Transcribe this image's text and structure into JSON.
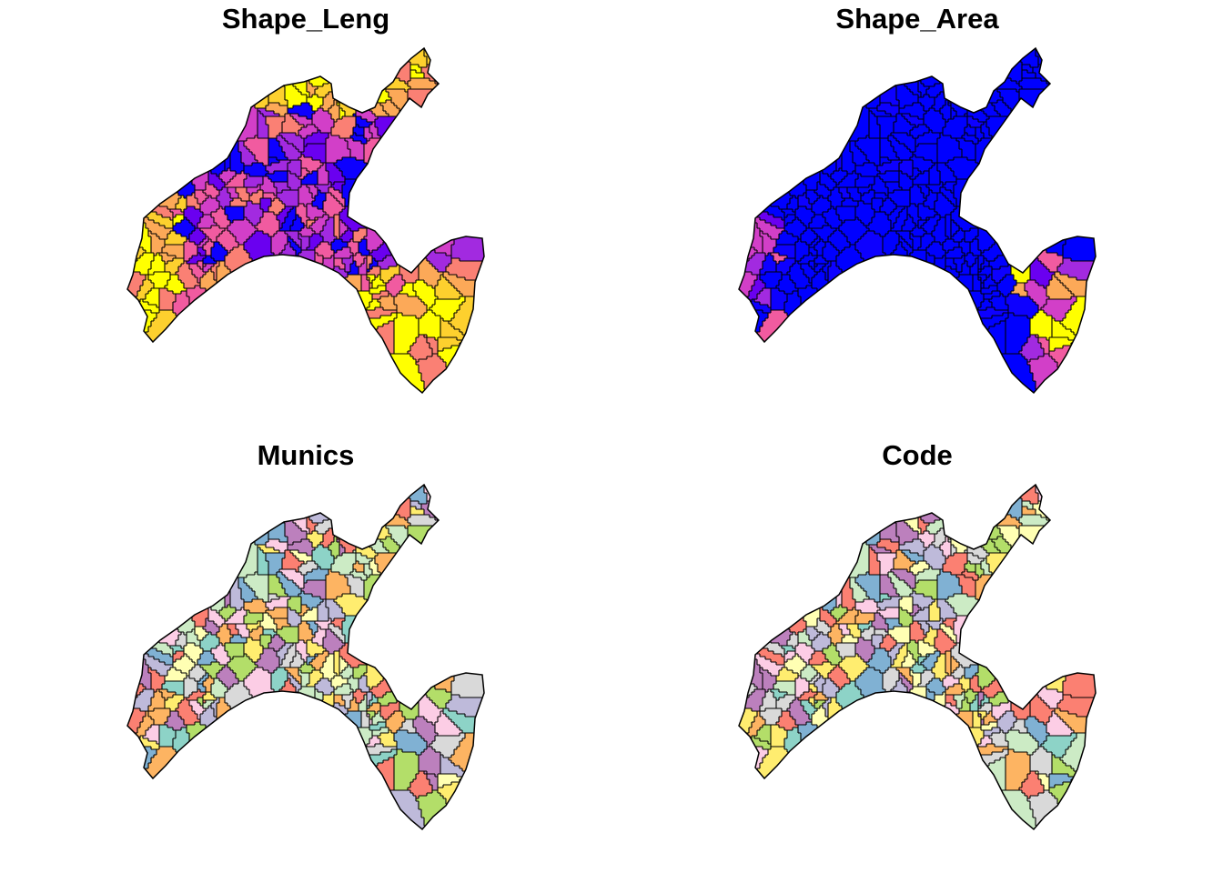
{
  "figure": {
    "panels": [
      {
        "title": "Shape_Leng",
        "palette": [
          "#0D00FF",
          "#6A00F0",
          "#A22AE0",
          "#D23FC8",
          "#F15BA0",
          "#FA8074",
          "#FCA958",
          "#FDD02E",
          "#FFFF00"
        ]
      },
      {
        "title": "Shape_Area",
        "palette": [
          "#0000FF",
          "#0000FF",
          "#0000FF",
          "#0000FF",
          "#0000FF",
          "#0D00FF",
          "#6A00F0",
          "#A22AE0",
          "#D23FC8",
          "#F15BA0",
          "#FCA958",
          "#FFFF00"
        ]
      },
      {
        "title": "Munics",
        "palette": [
          "#8DD3C7",
          "#FFFFB3",
          "#BEBADA",
          "#FB8072",
          "#80B1D3",
          "#FDB462",
          "#B3DE69",
          "#FCCDE5",
          "#D9D9D9",
          "#BC80BD",
          "#CCEBC5",
          "#FFED6F"
        ]
      },
      {
        "title": "Code",
        "palette": [
          "#8DD3C7",
          "#FFFFB3",
          "#BEBADA",
          "#FB8072",
          "#80B1D3",
          "#FDB462",
          "#B3DE69",
          "#FCCDE5",
          "#D9D9D9",
          "#BC80BD",
          "#CCEBC5",
          "#FFED6F"
        ]
      }
    ]
  }
}
